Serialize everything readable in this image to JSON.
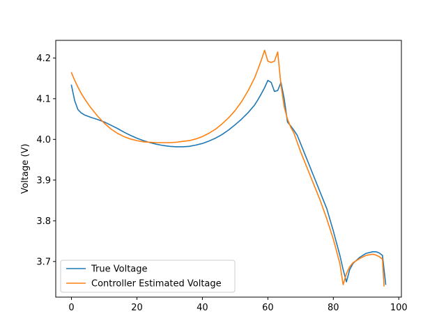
{
  "chart_data": {
    "type": "line",
    "title": "",
    "xlabel": "",
    "ylabel": "Voltage (V)",
    "xlim": [
      -4.8,
      100.8
    ],
    "ylim": [
      3.6125,
      4.2433
    ],
    "xticks": [
      0,
      20,
      40,
      60,
      80,
      100
    ],
    "yticks": [
      3.7,
      3.8,
      3.9,
      4.0,
      4.1,
      4.2
    ],
    "xtick_labels": [
      "0",
      "20",
      "40",
      "60",
      "80",
      "100"
    ],
    "ytick_labels": [
      "3.7",
      "3.8",
      "3.9",
      "4.0",
      "4.1",
      "4.2"
    ],
    "grid": false,
    "legend_position": "lower-left",
    "series": [
      {
        "name": "True Voltage",
        "color": "#1f77b4",
        "points": [
          [
            0,
            4.133
          ],
          [
            1,
            4.095
          ],
          [
            2,
            4.073
          ],
          [
            3,
            4.065
          ],
          [
            4,
            4.06
          ],
          [
            5,
            4.057
          ],
          [
            6,
            4.054
          ],
          [
            8,
            4.049
          ],
          [
            10,
            4.043
          ],
          [
            12,
            4.035
          ],
          [
            14,
            4.027
          ],
          [
            16,
            4.018
          ],
          [
            18,
            4.01
          ],
          [
            20,
            4.003
          ],
          [
            22,
            3.997
          ],
          [
            24,
            3.992
          ],
          [
            26,
            3.988
          ],
          [
            28,
            3.985
          ],
          [
            30,
            3.983
          ],
          [
            32,
            3.982
          ],
          [
            34,
            3.982
          ],
          [
            36,
            3.983
          ],
          [
            38,
            3.986
          ],
          [
            40,
            3.99
          ],
          [
            42,
            3.996
          ],
          [
            44,
            4.003
          ],
          [
            46,
            4.012
          ],
          [
            48,
            4.023
          ],
          [
            50,
            4.036
          ],
          [
            52,
            4.05
          ],
          [
            54,
            4.066
          ],
          [
            56,
            4.085
          ],
          [
            57,
            4.098
          ],
          [
            58,
            4.112
          ],
          [
            59,
            4.127
          ],
          [
            60,
            4.145
          ],
          [
            61,
            4.14
          ],
          [
            62,
            4.118
          ],
          [
            63,
            4.12
          ],
          [
            64,
            4.14
          ],
          [
            65,
            4.1
          ],
          [
            66,
            4.043
          ],
          [
            67,
            4.033
          ],
          [
            68,
            4.022
          ],
          [
            69,
            4.01
          ],
          [
            70,
            3.99
          ],
          [
            72,
            3.95
          ],
          [
            74,
            3.91
          ],
          [
            76,
            3.87
          ],
          [
            78,
            3.83
          ],
          [
            80,
            3.775
          ],
          [
            82,
            3.715
          ],
          [
            83,
            3.68
          ],
          [
            84,
            3.65
          ],
          [
            85,
            3.68
          ],
          [
            86,
            3.695
          ],
          [
            88,
            3.71
          ],
          [
            90,
            3.72
          ],
          [
            92,
            3.724
          ],
          [
            93,
            3.724
          ],
          [
            94,
            3.721
          ],
          [
            95,
            3.715
          ],
          [
            96,
            3.644
          ]
        ]
      },
      {
        "name": "Controller Estimated Voltage",
        "color": "#ff7f0e",
        "points": [
          [
            0,
            4.164
          ],
          [
            1,
            4.145
          ],
          [
            2,
            4.128
          ],
          [
            3,
            4.113
          ],
          [
            4,
            4.1
          ],
          [
            5,
            4.088
          ],
          [
            6,
            4.077
          ],
          [
            8,
            4.057
          ],
          [
            10,
            4.04
          ],
          [
            12,
            4.026
          ],
          [
            14,
            4.015
          ],
          [
            16,
            4.007
          ],
          [
            18,
            4.001
          ],
          [
            20,
            3.997
          ],
          [
            22,
            3.994
          ],
          [
            24,
            3.993
          ],
          [
            26,
            3.992
          ],
          [
            28,
            3.992
          ],
          [
            30,
            3.992
          ],
          [
            32,
            3.993
          ],
          [
            34,
            3.995
          ],
          [
            36,
            3.997
          ],
          [
            38,
            4.001
          ],
          [
            40,
            4.007
          ],
          [
            42,
            4.015
          ],
          [
            44,
            4.025
          ],
          [
            46,
            4.038
          ],
          [
            48,
            4.053
          ],
          [
            50,
            4.071
          ],
          [
            52,
            4.093
          ],
          [
            54,
            4.12
          ],
          [
            56,
            4.152
          ],
          [
            57,
            4.173
          ],
          [
            58,
            4.195
          ],
          [
            59,
            4.219
          ],
          [
            60,
            4.192
          ],
          [
            61,
            4.189
          ],
          [
            62,
            4.192
          ],
          [
            63,
            4.215
          ],
          [
            64,
            4.133
          ],
          [
            65,
            4.08
          ],
          [
            66,
            4.05
          ],
          [
            67,
            4.03
          ],
          [
            68,
            4.015
          ],
          [
            70,
            3.97
          ],
          [
            72,
            3.93
          ],
          [
            74,
            3.89
          ],
          [
            76,
            3.85
          ],
          [
            78,
            3.805
          ],
          [
            80,
            3.755
          ],
          [
            82,
            3.695
          ],
          [
            83,
            3.643
          ],
          [
            84,
            3.67
          ],
          [
            85,
            3.687
          ],
          [
            86,
            3.697
          ],
          [
            88,
            3.707
          ],
          [
            90,
            3.715
          ],
          [
            92,
            3.718
          ],
          [
            93,
            3.716
          ],
          [
            94,
            3.712
          ],
          [
            95,
            3.706
          ],
          [
            95.5,
            3.64
          ]
        ]
      }
    ]
  }
}
